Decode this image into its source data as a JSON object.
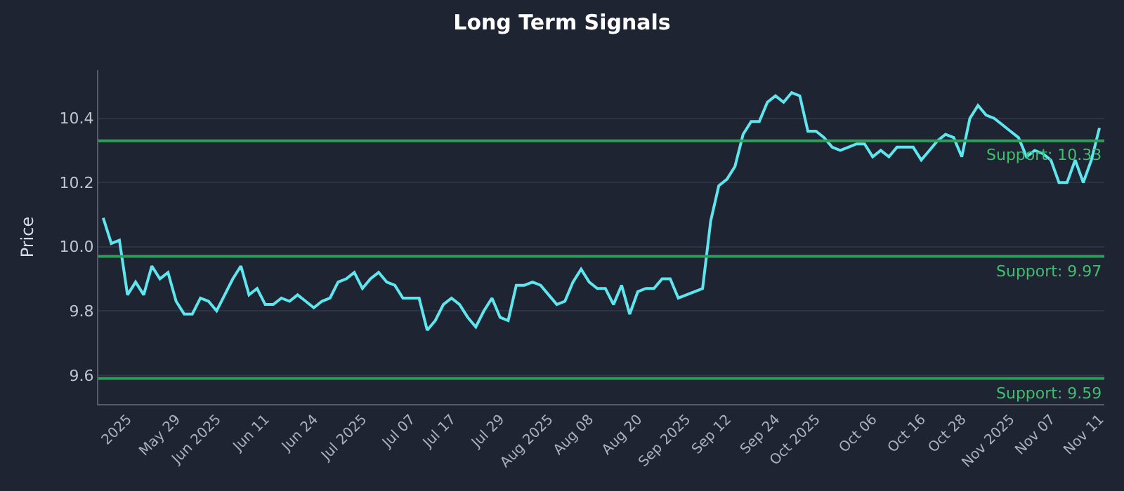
{
  "chart_data": {
    "type": "line",
    "title": "Long Term Signals",
    "ylabel": "Price",
    "categories": [
      null,
      null,
      null,
      "2025",
      null,
      null,
      null,
      null,
      null,
      "May 29",
      null,
      null,
      null,
      null,
      "Jun 2025",
      null,
      null,
      null,
      null,
      null,
      "Jun 11",
      null,
      null,
      null,
      null,
      null,
      "Jun 24",
      null,
      null,
      null,
      null,
      null,
      "Jul 2025",
      null,
      null,
      null,
      null,
      null,
      "Jul 07",
      null,
      null,
      null,
      null,
      "Jul 17",
      null,
      null,
      null,
      null,
      null,
      "Jul 29",
      null,
      null,
      null,
      null,
      null,
      "Aug 2025",
      null,
      null,
      null,
      null,
      "Aug 08",
      null,
      null,
      null,
      null,
      null,
      "Aug 20",
      null,
      null,
      null,
      null,
      null,
      "Sep 2025",
      null,
      null,
      null,
      null,
      "Sep 12",
      null,
      null,
      null,
      null,
      null,
      "Sep 24",
      null,
      null,
      null,
      null,
      "Oct 2025",
      null,
      null,
      null,
      null,
      null,
      null,
      "Oct 06",
      null,
      null,
      null,
      null,
      null,
      "Oct 16",
      null,
      null,
      null,
      null,
      "Oct 28",
      null,
      null,
      null,
      null,
      null,
      "Nov 2025",
      null,
      null,
      null,
      null,
      "Nov 07",
      null,
      null,
      null,
      null,
      null,
      "Nov 11"
    ],
    "series": [
      {
        "color": "#5ee6ee",
        "values": [
          10.09,
          10.01,
          10.02,
          9.85,
          9.89,
          9.85,
          9.94,
          9.9,
          9.92,
          9.83,
          9.79,
          9.79,
          9.84,
          9.83,
          9.8,
          9.85,
          9.9,
          9.94,
          9.85,
          9.87,
          9.82,
          9.82,
          9.84,
          9.83,
          9.85,
          9.83,
          9.81,
          9.83,
          9.84,
          9.89,
          9.9,
          9.92,
          9.87,
          9.9,
          9.92,
          9.89,
          9.88,
          9.84,
          9.84,
          9.84,
          9.74,
          9.77,
          9.82,
          9.84,
          9.82,
          9.78,
          9.75,
          9.8,
          9.84,
          9.78,
          9.77,
          9.88,
          9.88,
          9.89,
          9.88,
          9.85,
          9.82,
          9.83,
          9.89,
          9.93,
          9.89,
          9.87,
          9.87,
          9.82,
          9.88,
          9.79,
          9.86,
          9.87,
          9.87,
          9.9,
          9.9,
          9.84,
          9.85,
          9.86,
          9.87,
          10.08,
          10.19,
          10.21,
          10.25,
          10.35,
          10.39,
          10.39,
          10.45,
          10.47,
          10.45,
          10.48,
          10.47,
          10.36,
          10.36,
          10.34,
          10.31,
          10.3,
          10.31,
          10.32,
          10.32,
          10.28,
          10.3,
          10.28,
          10.31,
          10.31,
          10.31,
          10.27,
          10.3,
          10.33,
          10.35,
          10.34,
          10.28,
          10.4,
          10.44,
          10.41,
          10.4,
          10.38,
          10.36,
          10.34,
          10.28,
          10.3,
          10.29,
          10.27,
          10.2,
          10.2,
          10.27,
          10.2,
          10.27,
          10.37
        ]
      }
    ],
    "ylim": [
      9.51,
      10.55
    ],
    "yticks": [
      {
        "value": 9.6,
        "label": "9.6"
      },
      {
        "value": 9.8,
        "label": "9.8"
      },
      {
        "value": 10.0,
        "label": "10.0"
      },
      {
        "value": 10.2,
        "label": "10.2"
      },
      {
        "value": 10.4,
        "label": "10.4"
      }
    ],
    "grid": "y",
    "marker": "none",
    "line_style": "solid",
    "ref_lines": [
      {
        "axis": "y",
        "value": 10.33,
        "label": "Support: 10.33",
        "color": "#2e9e5b"
      },
      {
        "axis": "y",
        "value": 9.97,
        "label": "Support: 9.97",
        "color": "#2e9e5b"
      },
      {
        "axis": "y",
        "value": 9.59,
        "label": "Support: 9.59",
        "color": "#2e9e5b"
      }
    ]
  }
}
